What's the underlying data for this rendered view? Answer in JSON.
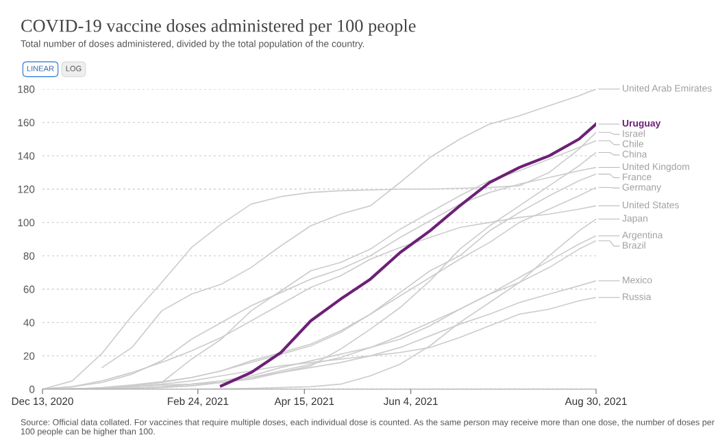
{
  "chart_data": {
    "type": "line",
    "title": "COVID-19 vaccine doses administered per 100 people",
    "subtitle": "Total number of doses administered, divided by the total population of the country.",
    "annotations": [
      "LINEAR",
      "LOG",
      "Source: Official data collated. For vaccines that require multiple doses, each individual dose is counted. As the same person may receive more than one dose, the number of doses per 100 people can be higher than 100."
    ],
    "x": [
      "2020-12-13",
      "2020-12-27",
      "2021-01-10",
      "2021-01-24",
      "2021-02-07",
      "2021-02-21",
      "2021-03-07",
      "2021-03-21",
      "2021-04-04",
      "2021-04-18",
      "2021-05-02",
      "2021-05-16",
      "2021-05-30",
      "2021-06-13",
      "2021-06-27",
      "2021-07-11",
      "2021-07-25",
      "2021-08-08",
      "2021-08-22",
      "2021-08-30"
    ],
    "series": [
      {
        "name": "United Arab Emirates",
        "color": "#cccccc",
        "values": [
          null,
          null,
          13,
          25,
          47,
          57,
          63,
          73,
          86,
          98,
          105,
          110,
          124,
          139,
          150,
          159,
          164,
          170,
          176,
          180
        ]
      },
      {
        "name": "Uruguay",
        "color": "#6d2077",
        "values": [
          null,
          null,
          null,
          null,
          null,
          null,
          2,
          10,
          22,
          41,
          54,
          66,
          82,
          95,
          110,
          124,
          133,
          140,
          150,
          159
        ]
      },
      {
        "name": "Israel",
        "color": "#cccccc",
        "values": [
          0,
          5,
          21.5,
          44,
          64,
          85,
          99,
          111,
          115.5,
          118,
          119,
          119.5,
          120,
          120,
          120.5,
          121,
          122,
          130,
          144,
          154
        ]
      },
      {
        "name": "Chile",
        "color": "#cccccc",
        "values": [
          null,
          null,
          null,
          null,
          4,
          18,
          30,
          47,
          59,
          71,
          76,
          84,
          96,
          106,
          116,
          125,
          131,
          138,
          145,
          149
        ]
      },
      {
        "name": "China",
        "color": "#cccccc",
        "values": [
          0,
          0.4,
          0.7,
          1.5,
          2.5,
          3,
          4,
          6,
          10,
          14,
          24,
          36,
          49,
          65,
          84,
          98,
          110,
          122,
          134,
          142
        ]
      },
      {
        "name": "United Kingdom",
        "color": "#cccccc",
        "values": [
          0.3,
          1.5,
          4,
          9,
          17,
          30,
          40,
          50,
          58,
          66,
          72,
          80,
          91,
          101,
          111,
          118,
          123,
          127,
          131,
          133
        ]
      },
      {
        "name": "France",
        "color": "#cccccc",
        "values": [
          null,
          0,
          0.5,
          2,
          4,
          7,
          11,
          17,
          22,
          27,
          35,
          45,
          58,
          71,
          80,
          95,
          106,
          116,
          125,
          129
        ]
      },
      {
        "name": "Germany",
        "color": "#cccccc",
        "values": [
          null,
          0.1,
          1,
          2.5,
          4.5,
          7,
          11,
          16,
          21,
          26,
          34,
          45,
          56,
          67,
          78,
          88,
          100,
          108,
          116,
          121
        ]
      },
      {
        "name": "United States",
        "color": "#cccccc",
        "values": [
          0,
          1.5,
          5,
          10,
          16,
          23,
          31,
          41,
          51,
          61,
          68,
          78,
          85,
          91,
          97,
          100,
          103,
          105,
          108,
          110
        ]
      },
      {
        "name": "Japan",
        "color": "#cccccc",
        "values": [
          null,
          null,
          null,
          null,
          null,
          0,
          0.2,
          0.5,
          1,
          1.5,
          3,
          8,
          15,
          26,
          40,
          52,
          64,
          80,
          95,
          102
        ]
      },
      {
        "name": "Argentina",
        "color": "#cccccc",
        "values": [
          null,
          0.1,
          0.5,
          0.8,
          1.2,
          2,
          4,
          7,
          11,
          15,
          19,
          25,
          32,
          40,
          48,
          57,
          67,
          77,
          87,
          92
        ]
      },
      {
        "name": "Brazil",
        "color": "#cccccc",
        "values": [
          null,
          null,
          null,
          0.5,
          1.5,
          3,
          5,
          8,
          13,
          17,
          21,
          25,
          30,
          38,
          48,
          57,
          64,
          73,
          84,
          89
        ]
      },
      {
        "name": "Mexico",
        "color": "#cccccc",
        "values": [
          null,
          0,
          0.3,
          0.5,
          1,
          2,
          4,
          7,
          10,
          13,
          16,
          20,
          25,
          32,
          39,
          45,
          52,
          57,
          62,
          65
        ]
      },
      {
        "name": "Russia",
        "color": "#cccccc",
        "values": [
          0,
          0.3,
          0.6,
          1.5,
          3,
          5,
          8,
          11,
          14,
          16,
          18,
          20,
          22,
          25,
          31,
          38,
          45,
          48,
          53,
          55
        ]
      }
    ],
    "xlim": [
      "2020-12-13",
      "2021-08-30"
    ],
    "xticks": [
      {
        "value": "2020-12-13",
        "label": "Dec 13, 2020"
      },
      {
        "value": "2021-02-24",
        "label": "Feb 24, 2021"
      },
      {
        "value": "2021-04-15",
        "label": "Apr 15, 2021"
      },
      {
        "value": "2021-06-04",
        "label": "Jun 4, 2021"
      },
      {
        "value": "2021-08-30",
        "label": "Aug 30, 2021"
      }
    ],
    "ylim": [
      0,
      180
    ],
    "yticks": [
      0,
      20,
      40,
      60,
      80,
      100,
      120,
      140,
      160,
      180
    ],
    "grid": "y",
    "line_style": "solid",
    "marker": "none"
  }
}
